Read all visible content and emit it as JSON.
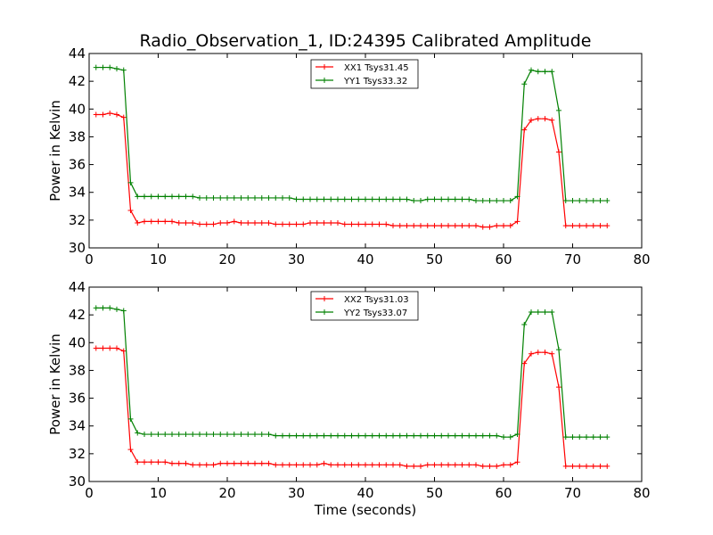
{
  "chart_data": [
    {
      "type": "line",
      "title": "Radio_Observation_1, ID:24395 Calibrated Amplitude",
      "xlabel": "",
      "ylabel": "Power in Kelvin",
      "xlim": [
        0,
        80
      ],
      "ylim": [
        30,
        44
      ],
      "xticks": [
        0,
        10,
        20,
        30,
        40,
        50,
        60,
        70,
        80
      ],
      "yticks": [
        30,
        32,
        34,
        36,
        38,
        40,
        42,
        44
      ],
      "grid": false,
      "legend_position": "top-center",
      "x": [
        1,
        2,
        3,
        4,
        5,
        6,
        7,
        8,
        9,
        10,
        11,
        12,
        13,
        14,
        15,
        16,
        17,
        18,
        19,
        20,
        21,
        22,
        23,
        24,
        25,
        26,
        27,
        28,
        29,
        30,
        31,
        32,
        33,
        34,
        35,
        36,
        37,
        38,
        39,
        40,
        41,
        42,
        43,
        44,
        45,
        46,
        47,
        48,
        49,
        50,
        51,
        52,
        53,
        54,
        55,
        56,
        57,
        58,
        59,
        60,
        61,
        62,
        63,
        64,
        65,
        66,
        67,
        68,
        69,
        70,
        71,
        72,
        73,
        74,
        75
      ],
      "series": [
        {
          "name": "XX1 Tsys31.45",
          "color": "#ff0000",
          "values": [
            39.6,
            39.6,
            39.7,
            39.6,
            39.4,
            32.7,
            31.8,
            31.9,
            31.9,
            31.9,
            31.9,
            31.9,
            31.8,
            31.8,
            31.8,
            31.7,
            31.7,
            31.7,
            31.8,
            31.8,
            31.9,
            31.8,
            31.8,
            31.8,
            31.8,
            31.8,
            31.7,
            31.7,
            31.7,
            31.7,
            31.7,
            31.8,
            31.8,
            31.8,
            31.8,
            31.8,
            31.7,
            31.7,
            31.7,
            31.7,
            31.7,
            31.7,
            31.7,
            31.6,
            31.6,
            31.6,
            31.6,
            31.6,
            31.6,
            31.6,
            31.6,
            31.6,
            31.6,
            31.6,
            31.6,
            31.6,
            31.5,
            31.5,
            31.6,
            31.6,
            31.6,
            31.9,
            38.5,
            39.2,
            39.3,
            39.3,
            39.2,
            36.9,
            31.6,
            31.6,
            31.6,
            31.6,
            31.6,
            31.6,
            31.6
          ]
        },
        {
          "name": "YY1 Tsys33.32",
          "color": "#008000",
          "values": [
            43.0,
            43.0,
            43.0,
            42.9,
            42.8,
            34.7,
            33.7,
            33.7,
            33.7,
            33.7,
            33.7,
            33.7,
            33.7,
            33.7,
            33.7,
            33.6,
            33.6,
            33.6,
            33.6,
            33.6,
            33.6,
            33.6,
            33.6,
            33.6,
            33.6,
            33.6,
            33.6,
            33.6,
            33.6,
            33.5,
            33.5,
            33.5,
            33.5,
            33.5,
            33.5,
            33.5,
            33.5,
            33.5,
            33.5,
            33.5,
            33.5,
            33.5,
            33.5,
            33.5,
            33.5,
            33.5,
            33.4,
            33.4,
            33.5,
            33.5,
            33.5,
            33.5,
            33.5,
            33.5,
            33.5,
            33.4,
            33.4,
            33.4,
            33.4,
            33.4,
            33.4,
            33.7,
            41.8,
            42.8,
            42.7,
            42.7,
            42.7,
            39.9,
            33.4,
            33.4,
            33.4,
            33.4,
            33.4,
            33.4,
            33.4
          ]
        }
      ]
    },
    {
      "type": "line",
      "title": "",
      "xlabel": "Time (seconds)",
      "ylabel": "Power in Kelvin",
      "xlim": [
        0,
        80
      ],
      "ylim": [
        30,
        44
      ],
      "xticks": [
        0,
        10,
        20,
        30,
        40,
        50,
        60,
        70,
        80
      ],
      "yticks": [
        30,
        32,
        34,
        36,
        38,
        40,
        42,
        44
      ],
      "grid": false,
      "legend_position": "top-center",
      "x": [
        1,
        2,
        3,
        4,
        5,
        6,
        7,
        8,
        9,
        10,
        11,
        12,
        13,
        14,
        15,
        16,
        17,
        18,
        19,
        20,
        21,
        22,
        23,
        24,
        25,
        26,
        27,
        28,
        29,
        30,
        31,
        32,
        33,
        34,
        35,
        36,
        37,
        38,
        39,
        40,
        41,
        42,
        43,
        44,
        45,
        46,
        47,
        48,
        49,
        50,
        51,
        52,
        53,
        54,
        55,
        56,
        57,
        58,
        59,
        60,
        61,
        62,
        63,
        64,
        65,
        66,
        67,
        68,
        69,
        70,
        71,
        72,
        73,
        74,
        75
      ],
      "series": [
        {
          "name": "XX2 Tsys31.03",
          "color": "#ff0000",
          "values": [
            39.6,
            39.6,
            39.6,
            39.6,
            39.4,
            32.3,
            31.4,
            31.4,
            31.4,
            31.4,
            31.4,
            31.3,
            31.3,
            31.3,
            31.2,
            31.2,
            31.2,
            31.2,
            31.3,
            31.3,
            31.3,
            31.3,
            31.3,
            31.3,
            31.3,
            31.3,
            31.2,
            31.2,
            31.2,
            31.2,
            31.2,
            31.2,
            31.2,
            31.3,
            31.2,
            31.2,
            31.2,
            31.2,
            31.2,
            31.2,
            31.2,
            31.2,
            31.2,
            31.2,
            31.2,
            31.1,
            31.1,
            31.1,
            31.2,
            31.2,
            31.2,
            31.2,
            31.2,
            31.2,
            31.2,
            31.2,
            31.1,
            31.1,
            31.1,
            31.2,
            31.2,
            31.4,
            38.5,
            39.2,
            39.3,
            39.3,
            39.2,
            36.8,
            31.1,
            31.1,
            31.1,
            31.1,
            31.1,
            31.1,
            31.1
          ]
        },
        {
          "name": "YY2 Tsys33.07",
          "color": "#008000",
          "values": [
            42.5,
            42.5,
            42.5,
            42.4,
            42.3,
            34.5,
            33.5,
            33.4,
            33.4,
            33.4,
            33.4,
            33.4,
            33.4,
            33.4,
            33.4,
            33.4,
            33.4,
            33.4,
            33.4,
            33.4,
            33.4,
            33.4,
            33.4,
            33.4,
            33.4,
            33.4,
            33.3,
            33.3,
            33.3,
            33.3,
            33.3,
            33.3,
            33.3,
            33.3,
            33.3,
            33.3,
            33.3,
            33.3,
            33.3,
            33.3,
            33.3,
            33.3,
            33.3,
            33.3,
            33.3,
            33.3,
            33.3,
            33.3,
            33.3,
            33.3,
            33.3,
            33.3,
            33.3,
            33.3,
            33.3,
            33.3,
            33.3,
            33.3,
            33.3,
            33.2,
            33.2,
            33.4,
            41.3,
            42.2,
            42.2,
            42.2,
            42.2,
            39.5,
            33.2,
            33.2,
            33.2,
            33.2,
            33.2,
            33.2,
            33.2
          ]
        }
      ]
    }
  ]
}
